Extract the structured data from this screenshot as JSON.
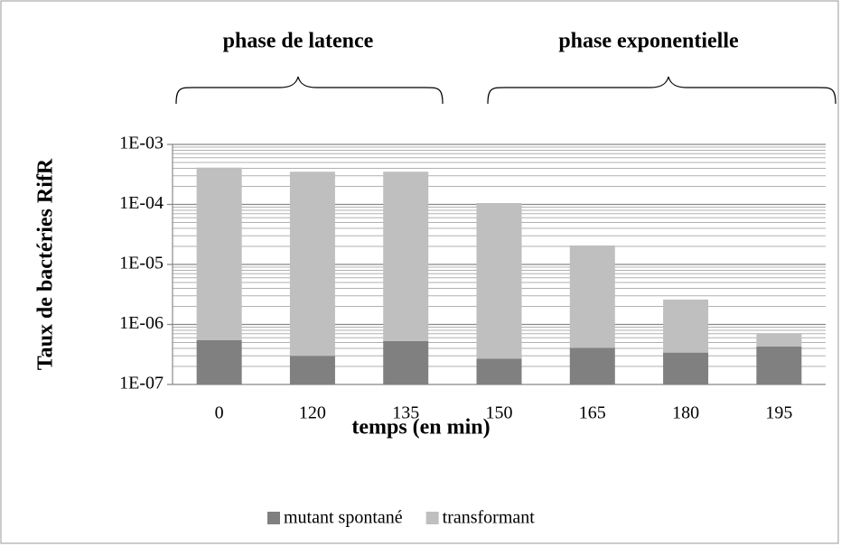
{
  "chart_data": {
    "type": "bar",
    "stacked": true,
    "log_scale": true,
    "grid": true,
    "legend": "bottom",
    "xlabel": "temps (en min)",
    "ylabel": "Taux de bactéries RifR",
    "annotations": [
      "phase de latence",
      "phase exponentielle"
    ],
    "categories": [
      "0",
      "120",
      "135",
      "150",
      "165",
      "180",
      "195"
    ],
    "series": [
      {
        "name": "mutant spontané",
        "color": "#808080",
        "values": [
          5.5e-07,
          3e-07,
          5.3e-07,
          2.7e-07,
          4.1e-07,
          3.4e-07,
          4.3e-07
        ]
      },
      {
        "name": "transformant",
        "color": "#bfbfbf",
        "values": [
          0.00041,
          0.00035,
          0.00035,
          0.000105,
          2.03e-05,
          2.26e-06,
          2.7e-07
        ]
      }
    ],
    "ylim": [
      1e-07,
      0.001
    ],
    "yticks": [
      {
        "value": 1e-07,
        "label": "1E-07"
      },
      {
        "value": 1e-06,
        "label": "1E-06"
      },
      {
        "value": 1e-05,
        "label": "1E-05"
      },
      {
        "value": 0.0001,
        "label": "1E-04"
      },
      {
        "value": 0.001,
        "label": "1E-03"
      }
    ]
  }
}
